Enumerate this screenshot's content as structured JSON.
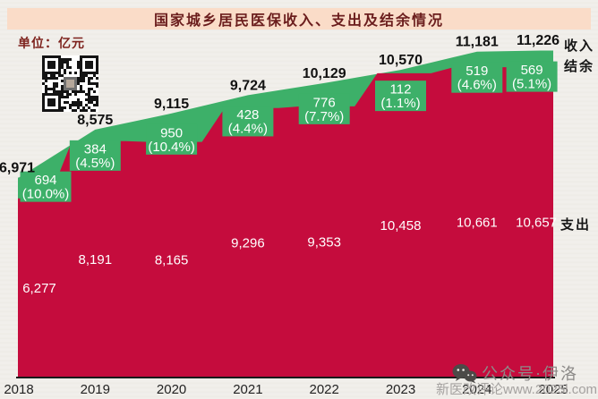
{
  "title": {
    "text": "国家城乡居民医保收入、支出及结余情况",
    "banner_bg": "#fadcc8",
    "text_color": "#6b1d1d"
  },
  "unit_label": "单位：亿元",
  "legend": {
    "income": "收入",
    "balance": "结余",
    "expense": "支出"
  },
  "footer": {
    "wechat_icon": "wechat-icon",
    "wechat_label": "公众号·伊洛",
    "watermark": "新医改评论www.2025l.com"
  },
  "colors": {
    "income_green": "#3db069",
    "expense_red": "#c50c3d",
    "income_label": "#111111",
    "expense_label": "#ffffff",
    "axis_line": "#1a1a1a",
    "year_label": "#222222"
  },
  "chart_data": {
    "type": "area",
    "title": "国家城乡居民医保收入、支出及结余情况",
    "unit": "亿元",
    "categories": [
      "2018",
      "2019",
      "2020",
      "2021",
      "2022",
      "2023",
      "2024",
      "2025"
    ],
    "series": [
      {
        "name": "收入",
        "values": [
          6971,
          8575,
          9115,
          9724,
          10129,
          10570,
          11181,
          11226
        ]
      },
      {
        "name": "支出",
        "values": [
          6277,
          8191,
          8165,
          9296,
          9353,
          10458,
          10661,
          10657
        ]
      },
      {
        "name": "结余",
        "values": [
          694,
          384,
          950,
          428,
          776,
          112,
          519,
          569
        ],
        "pct_labels": [
          "(10.0%)",
          "(4.5%)",
          "(10.4%)",
          "(4.4%)",
          "(7.7%)",
          "(1.1%)",
          "(4.6%)",
          "(5.1%)"
        ]
      }
    ],
    "legend_position": "right",
    "grid": false,
    "ylim": [
      0,
      12000
    ]
  }
}
